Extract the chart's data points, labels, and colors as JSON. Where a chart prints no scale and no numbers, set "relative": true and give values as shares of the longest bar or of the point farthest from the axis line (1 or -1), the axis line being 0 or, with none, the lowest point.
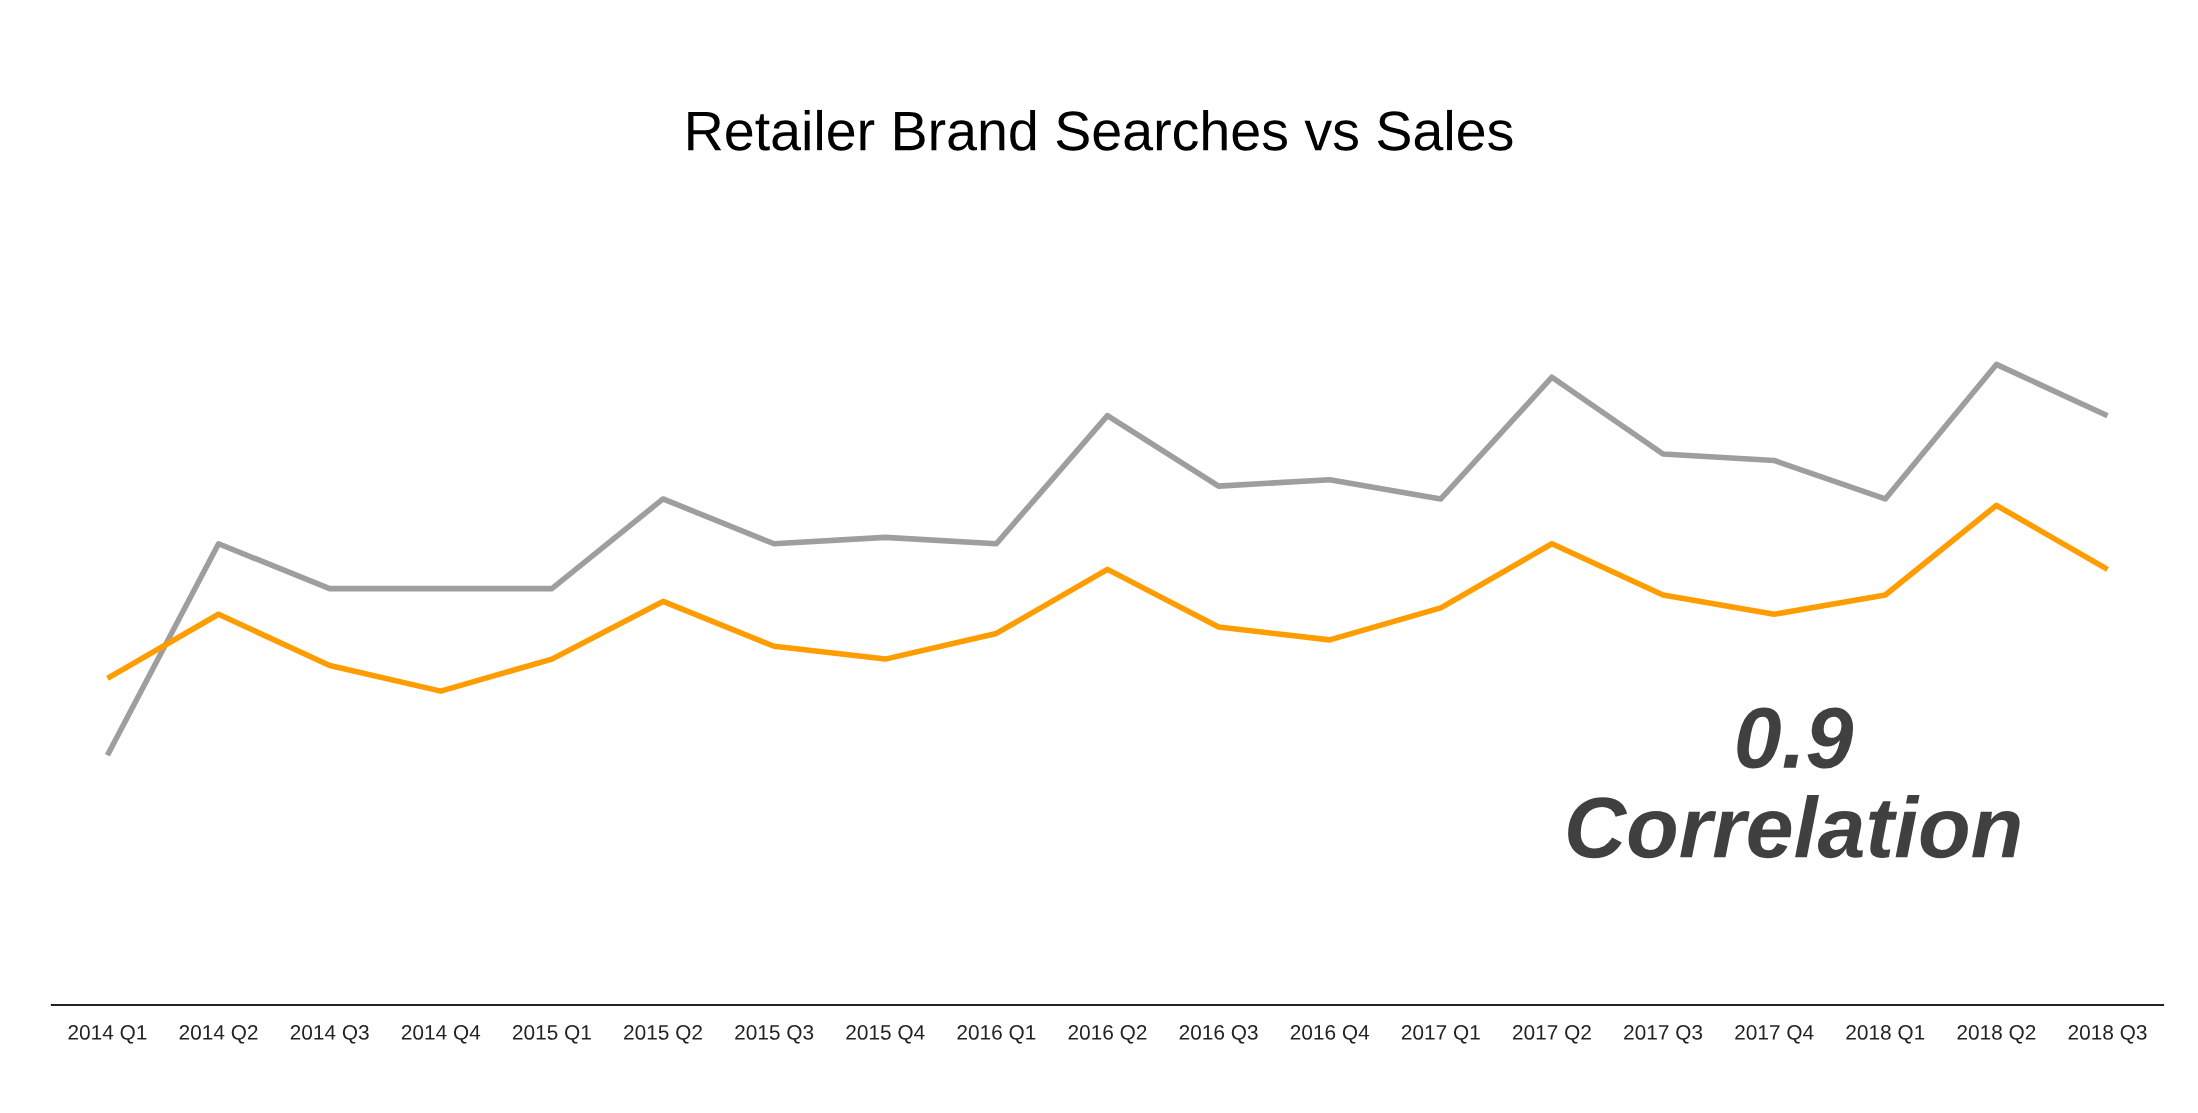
{
  "chart_data": {
    "type": "line",
    "title": "Retailer Brand Searches vs Sales",
    "relative": true,
    "categories": [
      "2014 Q1",
      "2014 Q2",
      "2014 Q3",
      "2014 Q4",
      "2015 Q1",
      "2015 Q2",
      "2015 Q3",
      "2015 Q4",
      "2016 Q1",
      "2016 Q2",
      "2016 Q3",
      "2016 Q4",
      "2017 Q1",
      "2017 Q2",
      "2017 Q3",
      "2017 Q4",
      "2018 Q1",
      "2018 Q2",
      "2018 Q3"
    ],
    "series": [
      {
        "color": "#9e9e9e",
        "values": [
          0.39,
          0.72,
          0.65,
          0.65,
          0.65,
          0.79,
          0.72,
          0.73,
          0.72,
          0.92,
          0.81,
          0.82,
          0.79,
          0.98,
          0.86,
          0.85,
          0.79,
          1,
          0.92
        ]
      },
      {
        "color": "#ff9d00",
        "values": [
          0.51,
          0.61,
          0.53,
          0.49,
          0.54,
          0.63,
          0.56,
          0.54,
          0.58,
          0.68,
          0.59,
          0.57,
          0.62,
          0.72,
          0.64,
          0.61,
          0.64,
          0.78,
          0.68
        ]
      }
    ],
    "annotations": [
      "0.9\nCorrelation"
    ]
  }
}
